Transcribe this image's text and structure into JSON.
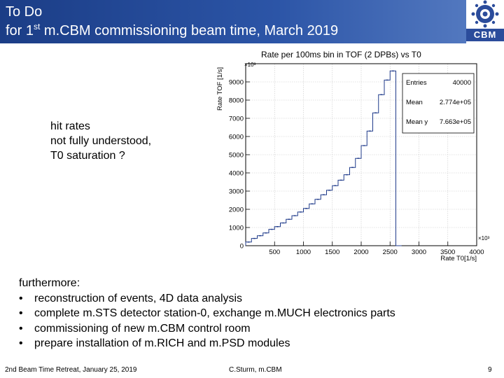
{
  "header": {
    "title_line1": "To Do",
    "title_line2_pre": "for 1",
    "title_line2_sup": "st",
    "title_line2_post": " m.CBM commissioning beam time, March 2019",
    "logo_text": "CBM"
  },
  "note": {
    "lines": [
      "hit rates",
      "not fully understood,",
      "T0 saturation ?"
    ]
  },
  "chart_data": {
    "type": "histogram",
    "title": "Rate per 100ms bin in TOF (2 DPBs) vs T0",
    "xlabel": "Rate T0[1/s]",
    "ylabel": "Rate TOF [1/s]",
    "x_exponent": "×10³",
    "y_exponent": "×10³",
    "xlim": [
      0,
      4000
    ],
    "ylim": [
      0,
      10000
    ],
    "x_ticks": [
      "500",
      "1000",
      "1500",
      "2000",
      "2500",
      "3000",
      "3500",
      "4000"
    ],
    "y_ticks": [
      "0",
      "1000",
      "2000",
      "3000",
      "4000",
      "5000",
      "6000",
      "7000",
      "8000",
      "9000"
    ],
    "stats": {
      "entries_label": "Entries",
      "entries_value": "40000",
      "mean_label": "Mean",
      "mean_value": "2.774e+05",
      "meany_label": "Mean y",
      "meany_value": "7.663e+05"
    },
    "step_x": [
      0,
      100,
      200,
      300,
      400,
      500,
      600,
      700,
      800,
      900,
      1000,
      1100,
      1200,
      1300,
      1400,
      1500,
      1600,
      1700,
      1800,
      1900,
      2000,
      2100,
      2200,
      2300,
      2400,
      2500,
      2600
    ],
    "step_y": [
      200,
      400,
      550,
      700,
      900,
      1050,
      1250,
      1450,
      1650,
      1850,
      2050,
      2300,
      2550,
      2800,
      3050,
      3300,
      3600,
      3900,
      4300,
      4800,
      5500,
      6300,
      7300,
      8300,
      9100,
      9600,
      0
    ]
  },
  "furthermore": {
    "heading": "furthermore:",
    "bullet": "•",
    "items": [
      "reconstruction of events, 4D data analysis",
      "complete m.STS detector station-0, exchange m.MUCH electronics parts",
      "commissioning of new m.CBM control room",
      "prepare installation of m.RICH and m.PSD modules"
    ]
  },
  "footer": {
    "left": "2nd Beam Time Retreat, January 25,  2019",
    "center": "C.Sturm, m.CBM",
    "page": "9"
  },
  "colors": {
    "header_blue": "#1b3d86",
    "histogram": "#1f3a8a",
    "grid": "#c8c8c8"
  }
}
